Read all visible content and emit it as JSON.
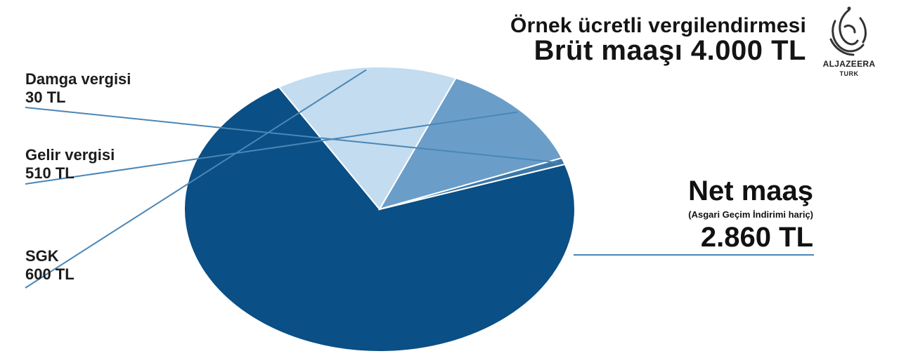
{
  "header": {
    "title_line1": "Örnek ücretli vergilendirmesi",
    "title_line2": "Brüt maaşı 4.000 TL"
  },
  "logo": {
    "name": "ALJAZEERA",
    "sub": "TURK"
  },
  "chart_data": {
    "type": "pie",
    "total": 4000,
    "unit": "TL",
    "slices": [
      {
        "key": "net",
        "name": "Net maaş",
        "note": "(Asgari Geçim İndirimi hariç)",
        "value": 2860,
        "value_label": "2.860 TL",
        "color": "#0a4f85"
      },
      {
        "key": "sgk",
        "name": "SGK",
        "value": 600,
        "value_label": "600 TL",
        "color": "#c3dcef"
      },
      {
        "key": "gelir",
        "name": "Gelir vergisi",
        "value": 510,
        "value_label": "510 TL",
        "color": "#6a9ec9"
      },
      {
        "key": "damga",
        "name": "Damga vergisi",
        "value": 30,
        "value_label": "30 TL",
        "color": "#3d77a8"
      }
    ],
    "leader_color": "#4a86b6"
  }
}
